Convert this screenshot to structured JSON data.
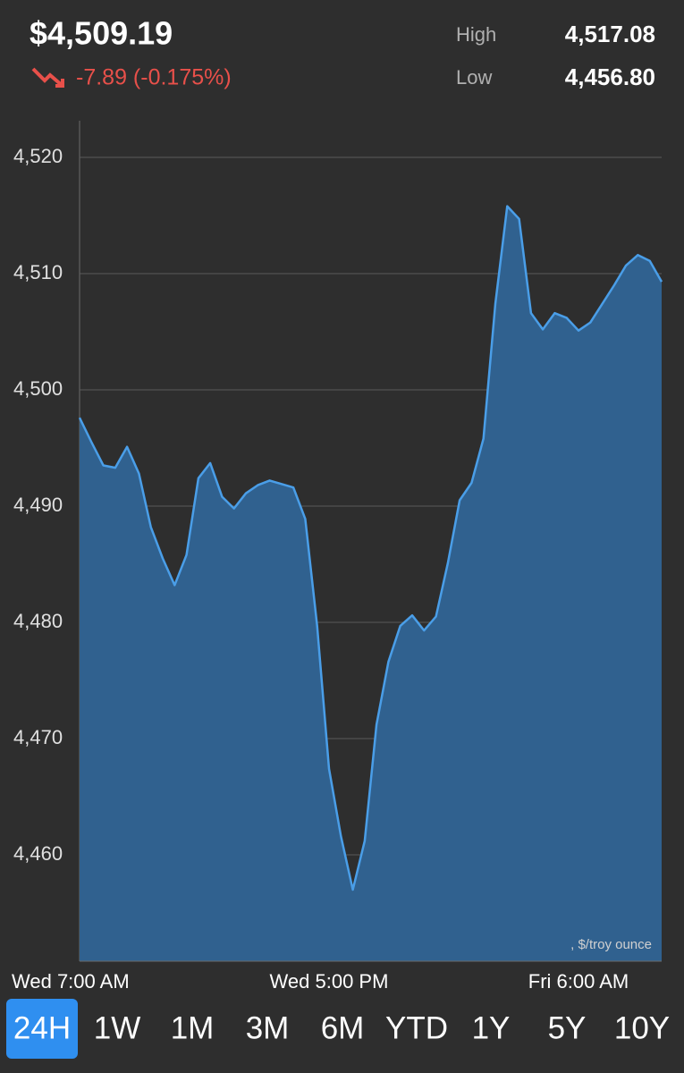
{
  "header": {
    "price": "$4,509.19",
    "change": "-7.89 (-0.175%)",
    "high_label": "High",
    "high": "4,517.08",
    "low_label": "Low",
    "low": "4,456.80"
  },
  "chart_data": {
    "type": "area",
    "color": "#4a9ee8",
    "fill": "#30618f",
    "grid": true,
    "annotation": ", $/troy ounce",
    "categories": [
      "Wed 7:00 AM",
      null,
      null,
      null,
      null,
      null,
      null,
      null,
      null,
      null,
      null,
      null,
      null,
      null,
      null,
      null,
      null,
      null,
      null,
      null,
      null,
      "Wed 5:00 PM",
      null,
      null,
      null,
      null,
      null,
      null,
      null,
      null,
      null,
      null,
      null,
      null,
      null,
      null,
      null,
      null,
      null,
      null,
      null,
      null,
      "Fri 6:00 AM",
      null,
      null,
      null,
      null,
      null,
      null,
      null
    ],
    "values": [
      4497.6,
      4495.5,
      4493.5,
      4493.3,
      4495.1,
      4492.8,
      4488.2,
      4485.5,
      4483.2,
      4485.8,
      4492.4,
      4493.7,
      4490.8,
      4489.8,
      4491.1,
      4491.8,
      4492.2,
      4491.9,
      4491.6,
      4488.9,
      4479.7,
      4467.4,
      4461.6,
      4457.0,
      4461.2,
      4471.2,
      4476.6,
      4479.7,
      4480.6,
      4479.3,
      4480.5,
      4485.1,
      4490.5,
      4492.0,
      4495.8,
      4507.4,
      4515.8,
      4514.7,
      4506.6,
      4505.2,
      4506.6,
      4506.2,
      4505.1,
      4505.8,
      4507.4,
      4509.0,
      4510.7,
      4511.6,
      4511.1,
      4509.3
    ],
    "ylim": [
      4450.85,
      4523.15
    ],
    "yticks": [
      {
        "value": 4460,
        "label": "4,460"
      },
      {
        "value": 4470,
        "label": "4,470"
      },
      {
        "value": 4480,
        "label": "4,480"
      },
      {
        "value": 4490,
        "label": "4,490"
      },
      {
        "value": 4500,
        "label": "4,500"
      },
      {
        "value": 4510,
        "label": "4,510"
      },
      {
        "value": 4520,
        "label": "4,520"
      }
    ]
  },
  "tabs": [
    "24H",
    "1W",
    "1M",
    "3M",
    "6M",
    "YTD",
    "1Y",
    "5Y",
    "10Y"
  ],
  "selected_tab": 0
}
